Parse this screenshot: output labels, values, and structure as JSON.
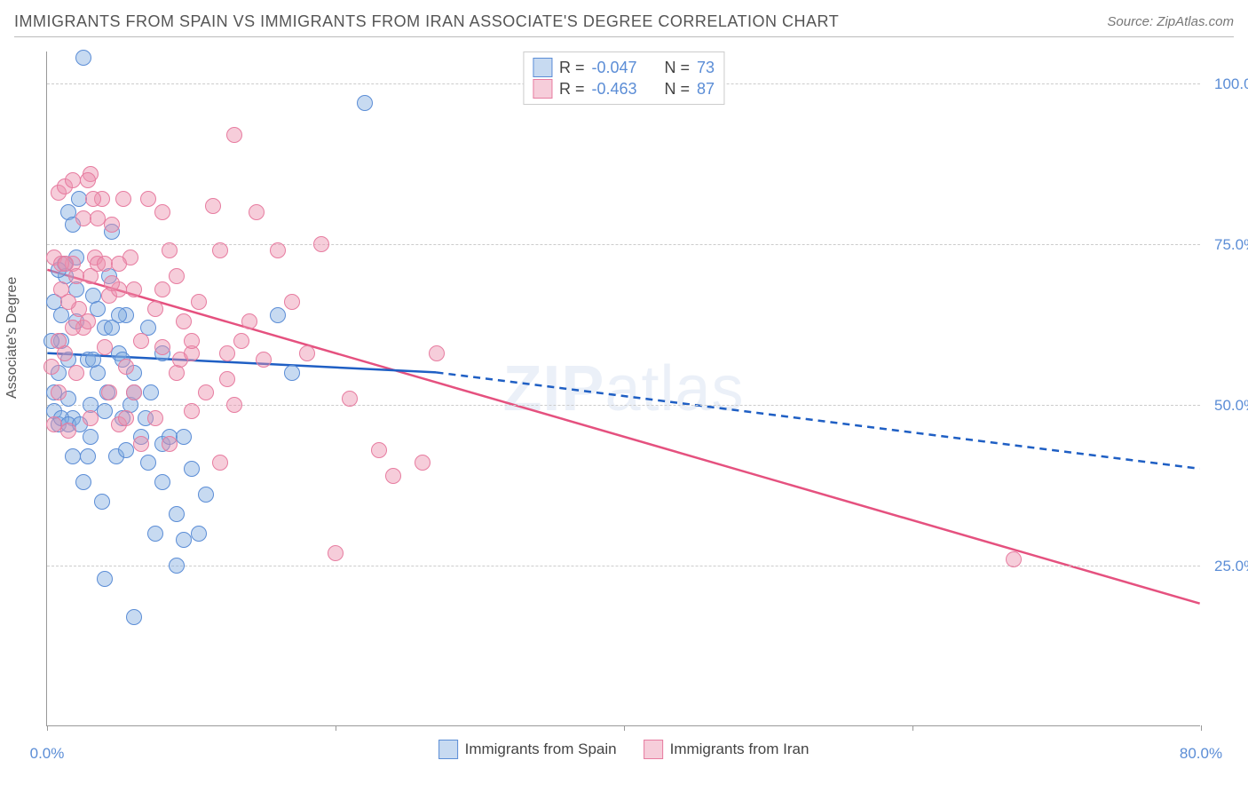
{
  "title": "IMMIGRANTS FROM SPAIN VS IMMIGRANTS FROM IRAN ASSOCIATE'S DEGREE CORRELATION CHART",
  "source_label": "Source:",
  "source_name": "ZipAtlas.com",
  "y_axis_label": "Associate's Degree",
  "watermark_bold": "ZIP",
  "watermark_light": "atlas",
  "xlim": [
    0,
    80
  ],
  "ylim": [
    0,
    105
  ],
  "x_ticks": [
    0,
    20,
    40,
    60,
    80
  ],
  "x_tick_labels": [
    "0.0%",
    "",
    "",
    "",
    "80.0%"
  ],
  "y_grid": [
    25,
    50,
    75,
    100
  ],
  "y_tick_labels": [
    "25.0%",
    "50.0%",
    "75.0%",
    "100.0%"
  ],
  "colors": {
    "spain_fill": "rgba(131, 173, 224, 0.45)",
    "spain_stroke": "#5b8dd6",
    "iran_fill": "rgba(236, 145, 173, 0.45)",
    "iran_stroke": "#e77ca0",
    "spain_trend": "#1f5fc4",
    "iran_trend": "#e5517f",
    "grid": "#cccccc",
    "axis": "#999999",
    "text": "#555555",
    "tick_text": "#5b8dd6",
    "background": "#ffffff"
  },
  "legend_top": {
    "label_R": "R =",
    "label_N": "N =",
    "rows": [
      {
        "swatch": "spain",
        "R": "-0.047",
        "N": "73"
      },
      {
        "swatch": "iran",
        "R": "-0.463",
        "N": "87"
      }
    ]
  },
  "legend_bottom": [
    {
      "swatch": "spain",
      "label": "Immigrants from Spain"
    },
    {
      "swatch": "iran",
      "label": "Immigrants from Iran"
    }
  ],
  "trend_lines": {
    "spain": {
      "solid": {
        "x1": 0,
        "y1": 58,
        "x2": 27,
        "y2": 55
      },
      "dashed": {
        "x1": 27,
        "y1": 55,
        "x2": 80,
        "y2": 40
      },
      "stroke_width": 2.5
    },
    "iran": {
      "solid": {
        "x1": 0,
        "y1": 71,
        "x2": 80,
        "y2": 19
      },
      "dashed": null,
      "stroke_width": 2.5
    }
  },
  "marker_radius": 9,
  "marker_stroke_width": 1.2,
  "series": {
    "spain": [
      [
        0.5,
        49
      ],
      [
        0.8,
        55
      ],
      [
        1,
        60
      ],
      [
        1.2,
        72
      ],
      [
        1.5,
        80
      ],
      [
        1.8,
        48
      ],
      [
        2,
        68
      ],
      [
        2.2,
        82
      ],
      [
        2.5,
        104
      ],
      [
        2.8,
        57
      ],
      [
        3,
        45
      ],
      [
        3.2,
        67
      ],
      [
        3.5,
        55
      ],
      [
        3.8,
        35
      ],
      [
        4,
        62
      ],
      [
        4.2,
        52
      ],
      [
        4.5,
        77
      ],
      [
        4.8,
        42
      ],
      [
        5,
        58
      ],
      [
        5.2,
        48
      ],
      [
        5.5,
        64
      ],
      [
        5.8,
        50
      ],
      [
        6,
        55
      ],
      [
        6.5,
        45
      ],
      [
        7,
        41
      ],
      [
        7.5,
        30
      ],
      [
        4,
        23
      ],
      [
        2.5,
        38
      ],
      [
        3,
        50
      ],
      [
        1.5,
        51
      ],
      [
        6,
        17
      ],
      [
        8,
        44
      ],
      [
        8.5,
        45
      ],
      [
        9,
        33
      ],
      [
        9.5,
        29
      ],
      [
        10,
        40
      ],
      [
        1,
        64
      ],
      [
        1.3,
        70
      ],
      [
        0.8,
        47
      ],
      [
        2,
        63
      ],
      [
        4.3,
        70
      ],
      [
        5.5,
        43
      ],
      [
        6.8,
        48
      ],
      [
        3.2,
        57
      ],
      [
        7.2,
        52
      ],
      [
        2.8,
        42
      ],
      [
        4,
        49
      ],
      [
        5,
        64
      ],
      [
        6,
        52
      ],
      [
        7,
        62
      ],
      [
        8,
        58
      ],
      [
        8,
        38
      ],
      [
        9,
        25
      ],
      [
        11,
        36
      ],
      [
        9.5,
        45
      ],
      [
        10.5,
        30
      ],
      [
        4.5,
        62
      ],
      [
        5.2,
        57
      ],
      [
        3.5,
        65
      ],
      [
        2,
        73
      ],
      [
        1.5,
        57
      ],
      [
        1.8,
        42
      ],
      [
        0.5,
        52
      ],
      [
        16,
        64
      ],
      [
        17,
        55
      ],
      [
        22,
        97
      ],
      [
        0.8,
        71
      ],
      [
        1,
        48
      ],
      [
        1.5,
        47
      ],
      [
        0.3,
        60
      ],
      [
        0.5,
        66
      ],
      [
        1.8,
        78
      ],
      [
        2.3,
        47
      ]
    ],
    "iran": [
      [
        0.5,
        73
      ],
      [
        0.8,
        83
      ],
      [
        1,
        68
      ],
      [
        1.2,
        58
      ],
      [
        1.5,
        46
      ],
      [
        1.8,
        72
      ],
      [
        2,
        55
      ],
      [
        2.5,
        62
      ],
      [
        3,
        86
      ],
      [
        3.3,
        73
      ],
      [
        3.5,
        72
      ],
      [
        3.8,
        82
      ],
      [
        4,
        59
      ],
      [
        4.3,
        67
      ],
      [
        4.5,
        78
      ],
      [
        5,
        68
      ],
      [
        5.3,
        82
      ],
      [
        5.5,
        56
      ],
      [
        5.8,
        73
      ],
      [
        6,
        68
      ],
      [
        6.5,
        60
      ],
      [
        7,
        82
      ],
      [
        7.5,
        65
      ],
      [
        8,
        80
      ],
      [
        8.5,
        74
      ],
      [
        7.5,
        48
      ],
      [
        9,
        55
      ],
      [
        9.2,
        57
      ],
      [
        9.5,
        63
      ],
      [
        10,
        58
      ],
      [
        10.5,
        66
      ],
      [
        11,
        52
      ],
      [
        11.5,
        81
      ],
      [
        12,
        74
      ],
      [
        12.5,
        58
      ],
      [
        13,
        92
      ],
      [
        13.5,
        60
      ],
      [
        14,
        63
      ],
      [
        14.5,
        80
      ],
      [
        8,
        59
      ],
      [
        15,
        57
      ],
      [
        10,
        49
      ],
      [
        16,
        74
      ],
      [
        8.5,
        44
      ],
      [
        17,
        66
      ],
      [
        12,
        41
      ],
      [
        18,
        58
      ],
      [
        13,
        50
      ],
      [
        19,
        75
      ],
      [
        12.5,
        54
      ],
      [
        3,
        48
      ],
      [
        4.3,
        52
      ],
      [
        5,
        47
      ],
      [
        6,
        52
      ],
      [
        6.5,
        44
      ],
      [
        5.5,
        48
      ],
      [
        4,
        72
      ],
      [
        2.5,
        79
      ],
      [
        2.8,
        85
      ],
      [
        3.2,
        82
      ],
      [
        3.5,
        79
      ],
      [
        4.5,
        69
      ],
      [
        5,
        72
      ],
      [
        3,
        70
      ],
      [
        2.2,
        65
      ],
      [
        1.8,
        62
      ],
      [
        1,
        72
      ],
      [
        8,
        68
      ],
      [
        9,
        70
      ],
      [
        10,
        60
      ],
      [
        20,
        27
      ],
      [
        23,
        43
      ],
      [
        24,
        39
      ],
      [
        26,
        41
      ],
      [
        27,
        58
      ],
      [
        21,
        51
      ],
      [
        0.5,
        47
      ],
      [
        0.8,
        60
      ],
      [
        1.2,
        84
      ],
      [
        1.5,
        66
      ],
      [
        2,
        70
      ],
      [
        67,
        26
      ],
      [
        0.3,
        56
      ],
      [
        0.8,
        52
      ],
      [
        1.3,
        72
      ],
      [
        2.8,
        63
      ],
      [
        1.8,
        85
      ]
    ]
  }
}
